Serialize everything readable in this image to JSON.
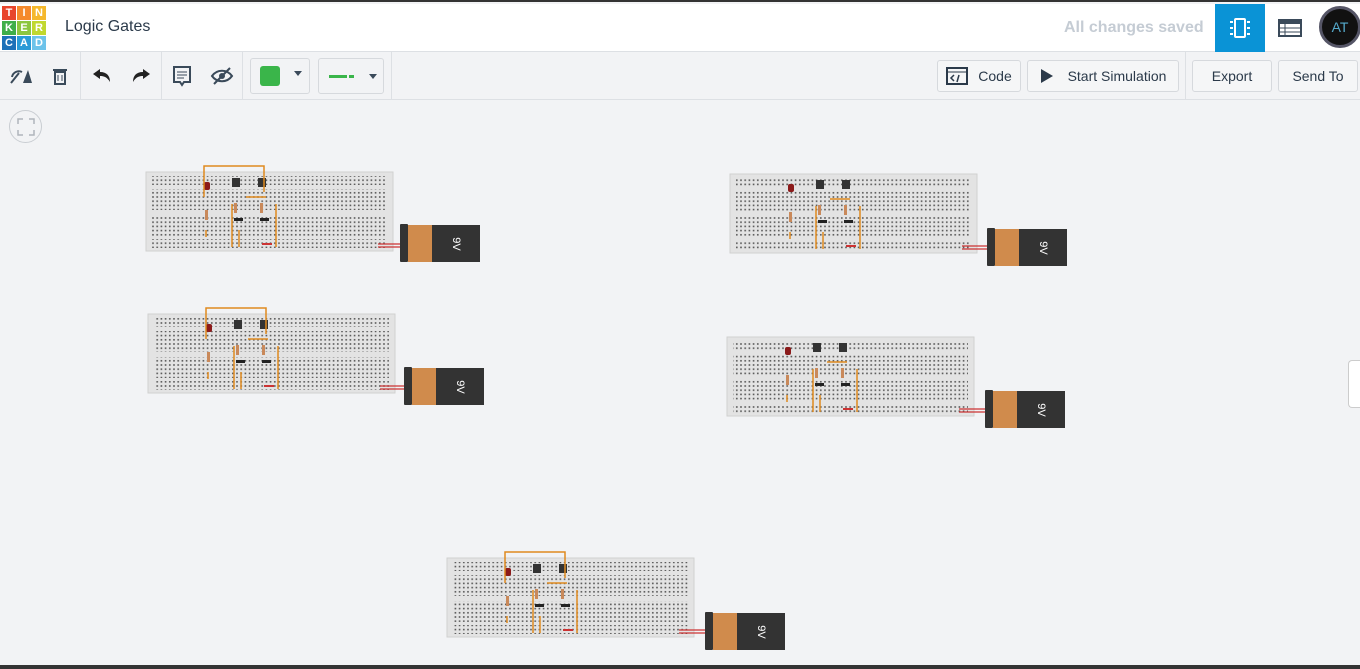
{
  "header": {
    "logo_letters": [
      "T",
      "I",
      "N",
      "K",
      "E",
      "R",
      "C",
      "A",
      "D"
    ],
    "logo_colors": [
      "#e8452c",
      "#f58a2c",
      "#f5b82c",
      "#3fae49",
      "#8dc63f",
      "#c1d82f",
      "#1d71b8",
      "#2b9bd7",
      "#6dc3ea"
    ],
    "title": "Logic Gates",
    "save_status": "All changes saved",
    "avatar_text": "AT",
    "active_view": "circuit-view"
  },
  "toolbar": {
    "color_swatch": "#3ab54a",
    "code_label": "Code",
    "simulate_label": "Start Simulation",
    "export_label": "Export",
    "send_label": "Send To"
  },
  "canvas": {
    "battery_label": "9V",
    "circuit_count": 5
  }
}
